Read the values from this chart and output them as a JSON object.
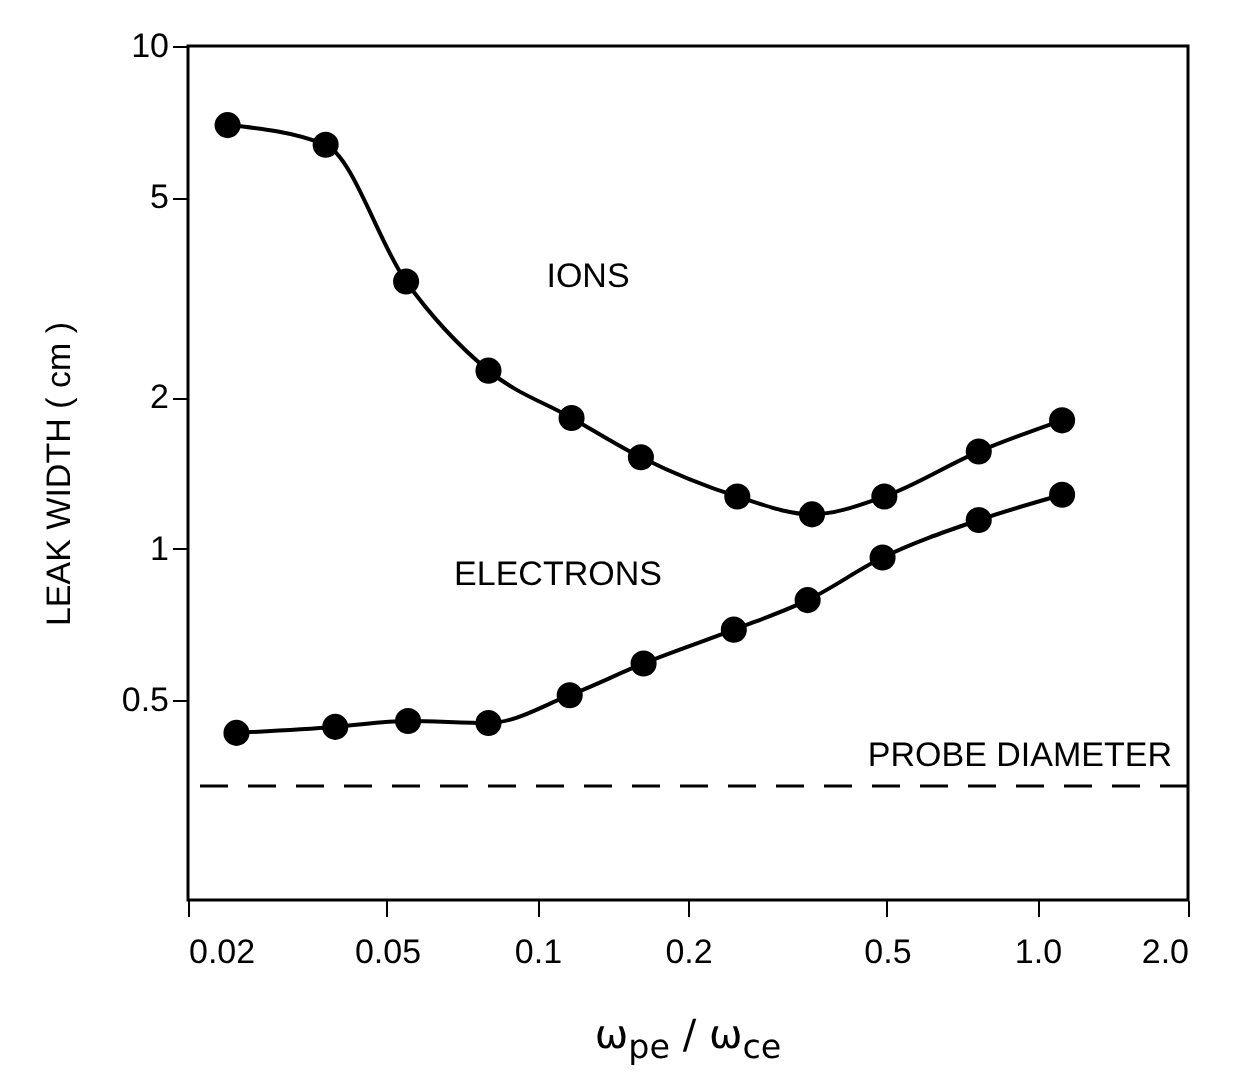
{
  "chart_data": {
    "type": "line",
    "xlabel": "ω$_{pe}$ / ω$_{ce}$",
    "ylabel": "LEAK WIDTH ( cm )",
    "log": "xy",
    "grid": false,
    "marker": "circle",
    "line_style": "solid",
    "xlim": [
      0.02,
      2.0
    ],
    "xticks": [
      0.02,
      0.05,
      0.1,
      0.2,
      0.5,
      {
        "value": 1,
        "label": "1.0"
      },
      {
        "value": 2,
        "label": "2.0"
      }
    ],
    "ylim": [
      0.2,
      10
    ],
    "yticks": [
      0.5,
      1,
      2,
      5,
      10
    ],
    "series": [
      {
        "name": "IONS",
        "color": "#000000",
        "x": [
          0.024,
          0.0377,
          0.0546,
          0.0798,
          0.117,
          0.161,
          0.251,
          0.354,
          0.494,
          0.763,
          1.12
        ],
        "values": [
          6.96,
          6.36,
          3.4,
          2.26,
          1.82,
          1.52,
          1.27,
          1.17,
          1.27,
          1.56,
          1.8
        ]
      },
      {
        "name": "ELECTRONS",
        "color": "#000000",
        "x": [
          0.025,
          0.0394,
          0.0551,
          0.0798,
          0.116,
          0.163,
          0.247,
          0.347,
          0.49,
          0.763,
          1.12
        ],
        "values": [
          0.43,
          0.442,
          0.454,
          0.45,
          0.511,
          0.591,
          0.69,
          0.79,
          0.96,
          1.14,
          1.28
        ]
      }
    ],
    "ref_lines": [
      {
        "axis": "y",
        "value": 0.337,
        "label": "PROBE DIAMETER",
        "color": "#000000",
        "line_style": "dashed"
      }
    ]
  }
}
